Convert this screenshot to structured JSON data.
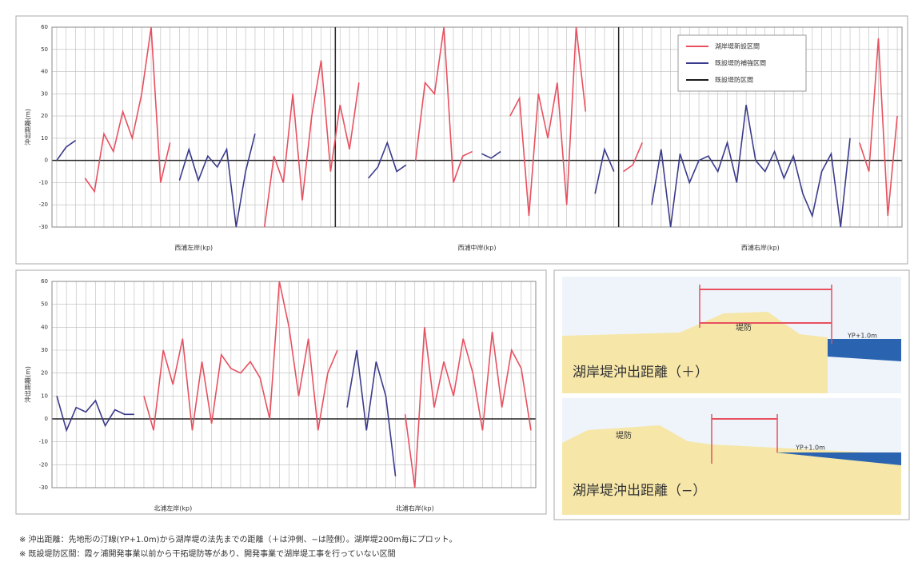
{
  "chart_data": [
    {
      "type": "line",
      "y_label": "沖出距離(m)",
      "section_labels": [
        "西浦左岸(kp)",
        "西浦中岸(kp)",
        "西浦右岸(kp)"
      ],
      "ylim": [
        -30,
        60
      ],
      "yticks": [
        -30,
        -20,
        -10,
        0,
        10,
        20,
        30,
        40,
        50,
        60
      ],
      "grid": true,
      "legend": "upper right",
      "series": [
        {
          "name": "湖岸堤新設区間",
          "color": "#e8505f",
          "values": [
            null,
            null,
            null,
            -8,
            -14,
            12,
            4,
            22,
            10,
            30,
            60,
            -10,
            8,
            null,
            null,
            null,
            null,
            null,
            null,
            null,
            null,
            null,
            -30,
            2,
            -10,
            30,
            -18,
            20,
            45,
            -5,
            25,
            5,
            35,
            null,
            null,
            null,
            null,
            null,
            0,
            35,
            30,
            60,
            -10,
            2,
            4,
            null,
            null,
            null,
            20,
            28,
            -25,
            30,
            10,
            35,
            -20,
            60,
            22,
            null,
            null,
            null,
            -5,
            -2,
            8,
            null,
            null,
            null,
            null,
            null,
            null,
            null,
            null,
            null,
            null,
            null,
            null,
            null,
            null,
            null,
            null,
            null,
            null,
            null,
            null,
            null,
            null,
            8,
            -5,
            55,
            -25,
            20
          ]
        },
        {
          "name": "既設堤防補強区間",
          "color": "#3a3a8c",
          "values": [
            0,
            6,
            9,
            null,
            null,
            null,
            null,
            null,
            null,
            null,
            null,
            null,
            null,
            -9,
            5,
            -9,
            2,
            -3,
            5,
            -30,
            -5,
            12,
            null,
            null,
            null,
            null,
            null,
            null,
            null,
            null,
            null,
            null,
            null,
            -8,
            -3,
            8,
            -5,
            -2,
            null,
            null,
            null,
            null,
            null,
            null,
            null,
            3,
            1,
            4,
            null,
            null,
            null,
            null,
            null,
            null,
            null,
            null,
            null,
            -15,
            5,
            -5,
            null,
            null,
            null,
            -20,
            5,
            -30,
            3,
            -10,
            0,
            2,
            -5,
            8,
            -10,
            25,
            0,
            -5,
            4,
            -8,
            2,
            -15,
            -25,
            -5,
            3,
            -30,
            10,
            null,
            null,
            null,
            null,
            null
          ]
        },
        {
          "name": "既設堤防区間",
          "color": "#1a1a1a",
          "values": []
        }
      ]
    },
    {
      "type": "line",
      "y_label": "沖出距離(m)",
      "section_labels": [
        "北浦左岸(kp)",
        "北浦右岸(kp)"
      ],
      "ylim": [
        -30,
        60
      ],
      "yticks": [
        -30,
        -20,
        -10,
        0,
        10,
        20,
        30,
        40,
        50,
        60
      ],
      "grid": true,
      "series": [
        {
          "name": "湖岸堤新設区間",
          "color": "#e8505f",
          "values": [
            null,
            null,
            null,
            null,
            null,
            null,
            null,
            null,
            null,
            10,
            -5,
            30,
            15,
            35,
            -5,
            25,
            -2,
            28,
            22,
            20,
            25,
            18,
            0,
            60,
            40,
            10,
            35,
            -5,
            20,
            30,
            null,
            null,
            null,
            null,
            null,
            null,
            2,
            -30,
            40,
            5,
            25,
            10,
            35,
            20,
            -5,
            38,
            5,
            30,
            22,
            -5
          ]
        },
        {
          "name": "既設堤防補強区間",
          "color": "#3a3a8c",
          "values": [
            10,
            -5,
            5,
            3,
            8,
            -3,
            4,
            2,
            2,
            null,
            null,
            null,
            null,
            null,
            null,
            null,
            null,
            null,
            null,
            null,
            null,
            null,
            null,
            null,
            null,
            null,
            null,
            null,
            null,
            null,
            5,
            30,
            -5,
            25,
            10,
            -25,
            null,
            null,
            null,
            null,
            null,
            null,
            null,
            null,
            null,
            null,
            null,
            null,
            null,
            null
          ]
        }
      ]
    }
  ],
  "diagram": {
    "levee": "堤防",
    "water_level": "YP+1.0m",
    "plus_caption": "湖岸堤沖出距離（＋）",
    "minus_caption": "湖岸堤沖出距離（−）"
  },
  "notes": [
    "※ 沖出距離：先地形の汀線(YP+1.0m)から湖岸堤の法先までの距離（＋は沖側、−は陸側）。湖岸堤200m毎にプロット。",
    "※ 既設堤防区間：霞ヶ浦開発事業以前から干拓堤防等があり、開発事業で湖岸堤工事を行っていない区間"
  ]
}
